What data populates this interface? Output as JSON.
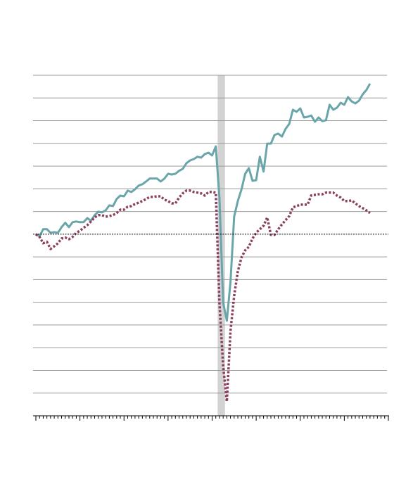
{
  "chart_data": {
    "type": "line",
    "x": [
      0,
      1,
      2,
      3,
      4,
      5,
      6,
      7,
      8,
      9,
      10,
      11,
      12,
      13,
      14,
      15,
      16,
      17,
      18,
      19,
      20,
      21,
      22,
      23,
      24,
      25,
      26,
      27,
      28,
      29,
      30,
      31,
      32,
      33,
      34,
      35,
      36,
      37,
      38,
      39,
      40,
      41,
      42,
      43,
      44,
      45,
      46,
      47,
      48,
      49,
      50,
      51,
      52,
      53,
      54,
      55,
      56,
      57,
      58,
      59,
      60,
      61,
      62,
      63,
      64,
      65,
      66,
      67,
      68,
      69,
      70,
      71,
      72,
      73,
      74,
      75,
      76,
      77,
      78,
      79,
      80,
      81,
      82,
      83,
      84,
      85,
      86,
      87,
      88,
      89,
      90,
      91
    ],
    "series": [
      {
        "color": "#6aa5aa",
        "style": "solid",
        "values": [
          0,
          -0.09,
          0.22,
          0.22,
          0.06,
          0.09,
          0.06,
          0.31,
          0.5,
          0.31,
          0.53,
          0.56,
          0.53,
          0.53,
          0.71,
          0.59,
          0.84,
          0.99,
          0.96,
          1.05,
          1.27,
          1.24,
          1.55,
          1.7,
          1.67,
          1.92,
          1.86,
          1.98,
          2.14,
          2.2,
          2.32,
          2.45,
          2.45,
          2.45,
          2.32,
          2.45,
          2.66,
          2.63,
          2.66,
          2.79,
          2.88,
          3.13,
          3.25,
          3.31,
          3.41,
          3.37,
          3.53,
          3.59,
          3.47,
          3.87,
          1.61,
          -3.03,
          -3.81,
          -2.11,
          0.77,
          1.46,
          1.98,
          2.66,
          2.91,
          2.35,
          2.38,
          3.41,
          2.76,
          3.99,
          3.99,
          4.37,
          4.43,
          4.3,
          4.64,
          4.86,
          5.48,
          5.39,
          5.54,
          5.14,
          5.17,
          5.23,
          4.95,
          5.14,
          4.98,
          5.02,
          5.7,
          5.48,
          5.57,
          5.79,
          5.7,
          6.04,
          5.85,
          5.76,
          5.88,
          6.16,
          6.35,
          6.63
        ]
      },
      {
        "color": "#8b3f5e",
        "style": "dotted",
        "values": [
          0,
          -0.12,
          -0.4,
          -0.34,
          -0.65,
          -0.53,
          -0.4,
          -0.19,
          -0.15,
          -0.22,
          -0.12,
          0.06,
          0.15,
          0.28,
          0.4,
          0.56,
          0.74,
          0.84,
          0.84,
          0.77,
          0.8,
          0.84,
          0.93,
          1.08,
          1.08,
          1.21,
          1.24,
          1.33,
          1.39,
          1.46,
          1.55,
          1.64,
          1.64,
          1.67,
          1.67,
          1.52,
          1.46,
          1.36,
          1.36,
          1.61,
          1.8,
          1.92,
          1.92,
          1.86,
          1.83,
          1.8,
          1.7,
          1.86,
          1.86,
          1.83,
          -3.03,
          -5.82,
          -7.37,
          -4.27,
          -2.72,
          -1.64,
          -1.02,
          -0.71,
          -0.56,
          -0.19,
          0.06,
          0.22,
          0.37,
          0.74,
          -0.03,
          -0.03,
          0.22,
          0.43,
          0.62,
          0.8,
          1.18,
          1.24,
          1.3,
          1.3,
          1.3,
          1.71,
          1.73,
          1.76,
          1.76,
          1.83,
          1.83,
          1.83,
          1.7,
          1.61,
          1.46,
          1.46,
          1.49,
          1.36,
          1.24,
          1.15,
          1.05,
          0.93
        ]
      }
    ],
    "xlim": [
      0,
      96
    ],
    "xticks": [
      0,
      12,
      24,
      36,
      48,
      60,
      72,
      84,
      96
    ],
    "xminor_ticks": [
      1,
      2,
      3,
      4,
      5,
      6,
      7,
      8,
      9,
      10,
      11,
      13,
      14,
      15,
      16,
      17,
      18,
      19,
      20,
      21,
      22,
      23,
      25,
      26,
      27,
      28,
      29,
      30,
      31,
      32,
      33,
      34,
      35,
      37,
      38,
      39,
      40,
      41,
      42,
      43,
      44,
      45,
      46,
      47,
      49,
      50,
      51,
      52,
      53,
      54,
      55,
      56,
      57,
      58,
      59,
      61,
      62,
      63,
      64,
      65,
      66,
      67,
      68,
      69,
      70,
      71,
      73,
      74,
      75,
      76,
      77,
      78,
      79,
      80,
      81,
      82,
      83,
      85,
      86,
      87,
      88,
      89,
      90,
      91,
      92,
      93,
      94,
      95
    ],
    "ylim": [
      -8,
      7
    ],
    "yticks": [
      -7,
      -6,
      -5,
      -4,
      -3,
      -2,
      -1,
      0,
      1,
      2,
      3,
      4,
      5,
      6,
      7
    ],
    "zero_line": 0,
    "shaded_x": [
      49.5,
      51.5
    ],
    "grid": true
  }
}
